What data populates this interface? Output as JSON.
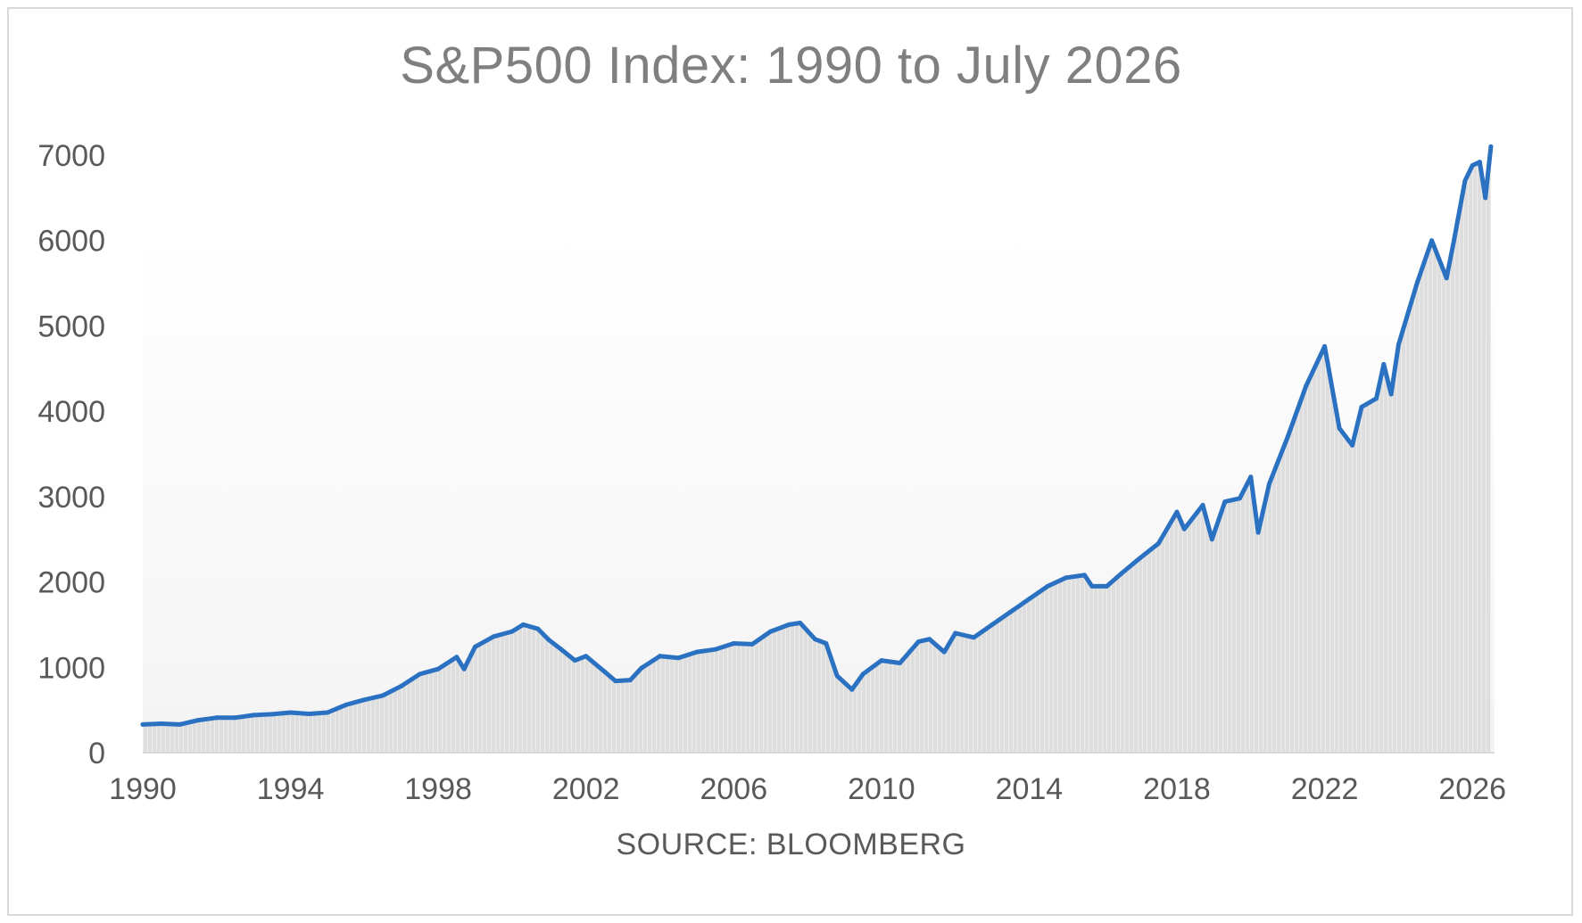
{
  "chart_data": {
    "type": "area",
    "title": "S&P500 Index: 1990 to July 2026",
    "xlabel": "SOURCE: BLOOMBERG",
    "ylabel": "",
    "xlim": [
      1990,
      2026.6
    ],
    "ylim": [
      0,
      7000
    ],
    "x_ticks": [
      1990,
      1994,
      1998,
      2002,
      2006,
      2010,
      2014,
      2018,
      2022,
      2026
    ],
    "y_ticks": [
      0,
      1000,
      2000,
      3000,
      4000,
      5000,
      6000,
      7000
    ],
    "grid": false,
    "legend": "none",
    "colors": {
      "line": "#2a71c2",
      "area": "#d9d9d9",
      "text": "#595959",
      "title": "#7f7f7f",
      "border": "#d9d9d9"
    },
    "series": [
      {
        "x": [
          1990.0,
          1990.5,
          1991.0,
          1991.5,
          1992.0,
          1992.5,
          1993.0,
          1993.5,
          1994.0,
          1994.5,
          1995.0,
          1995.5,
          1996.0,
          1996.5,
          1997.0,
          1997.5,
          1998.0,
          1998.5,
          1998.7,
          1999.0,
          1999.5,
          2000.0,
          2000.3,
          2000.7,
          2001.0,
          2001.3,
          2001.7,
          2002.0,
          2002.5,
          2002.8,
          2003.2,
          2003.5,
          2004.0,
          2004.5,
          2005.0,
          2005.5,
          2006.0,
          2006.5,
          2007.0,
          2007.5,
          2007.8,
          2008.2,
          2008.5,
          2008.8,
          2009.2,
          2009.5,
          2010.0,
          2010.5,
          2011.0,
          2011.3,
          2011.7,
          2012.0,
          2012.5,
          2013.0,
          2013.5,
          2014.0,
          2014.5,
          2015.0,
          2015.5,
          2015.7,
          2016.1,
          2016.5,
          2017.0,
          2017.5,
          2018.0,
          2018.2,
          2018.7,
          2018.95,
          2019.3,
          2019.7,
          2020.0,
          2020.2,
          2020.5,
          2021.0,
          2021.5,
          2022.0,
          2022.4,
          2022.75,
          2023.0,
          2023.4,
          2023.6,
          2023.8,
          2024.0,
          2024.5,
          2024.9,
          2025.3,
          2025.5,
          2025.8,
          2026.0,
          2026.2,
          2026.35,
          2026.5
        ],
        "values": [
          330,
          340,
          330,
          380,
          410,
          410,
          440,
          450,
          470,
          455,
          470,
          560,
          620,
          670,
          780,
          920,
          980,
          1120,
          980,
          1240,
          1360,
          1420,
          1500,
          1450,
          1320,
          1220,
          1080,
          1130,
          950,
          840,
          850,
          990,
          1130,
          1110,
          1180,
          1210,
          1280,
          1270,
          1420,
          1500,
          1520,
          1330,
          1280,
          900,
          740,
          920,
          1080,
          1050,
          1300,
          1330,
          1180,
          1400,
          1350,
          1500,
          1650,
          1800,
          1950,
          2050,
          2080,
          1950,
          1950,
          2100,
          2280,
          2450,
          2820,
          2620,
          2900,
          2500,
          2940,
          2980,
          3230,
          2580,
          3150,
          3700,
          4300,
          4760,
          3800,
          3600,
          4050,
          4150,
          4550,
          4200,
          4780,
          5500,
          6000,
          5560,
          6000,
          6700,
          6880,
          6920,
          6500,
          7100
        ]
      }
    ],
    "source": "SOURCE: BLOOMBERG"
  }
}
